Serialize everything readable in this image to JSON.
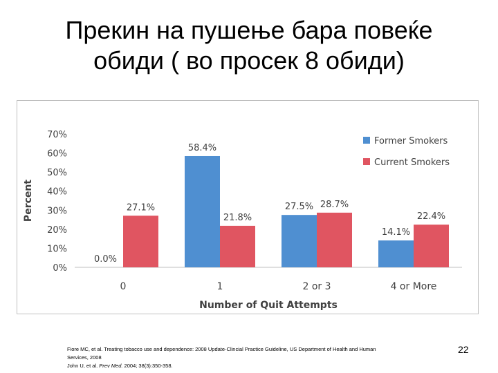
{
  "slide": {
    "title_line1": "Прекин на пушење бара повеќе",
    "title_line2": "обиди ( во просек 8 обиди)",
    "page_number": "22"
  },
  "references": {
    "line1": "Fiore MC, et al.  Treating tobacco use and dependence:  2008 Update-Clincial Practice Guideline, US Department of Health and Human",
    "line2": "Services, 2008",
    "line3_prefix": "John U, et al. ",
    "line3_journal": "Prev Med.",
    "line3_suffix": " 2004; 38(3):350-358."
  },
  "chart_data": {
    "type": "bar",
    "title": "",
    "xlabel": "Number of Quit Attempts",
    "ylabel": "Percent",
    "categories": [
      "0",
      "1",
      "2 or 3",
      "4 or More"
    ],
    "series": [
      {
        "name": "Former Smokers",
        "color": "#4f8fd1",
        "values": [
          0.0,
          58.4,
          27.5,
          14.1
        ],
        "labels": [
          "0.0%",
          "58.4%",
          "27.5%",
          "14.1%"
        ]
      },
      {
        "name": "Current Smokers",
        "color": "#e05561",
        "values": [
          27.1,
          21.8,
          28.7,
          22.4
        ],
        "labels": [
          "27.1%",
          "21.8%",
          "28.7%",
          "22.4%"
        ]
      }
    ],
    "ylim": [
      0,
      70
    ],
    "yticks": [
      0,
      10,
      20,
      30,
      40,
      50,
      60,
      70
    ],
    "ytick_labels": [
      "0%",
      "10%",
      "20%",
      "30%",
      "40%",
      "50%",
      "60%",
      "70%"
    ],
    "grid": false,
    "legend_position": "top-right"
  }
}
